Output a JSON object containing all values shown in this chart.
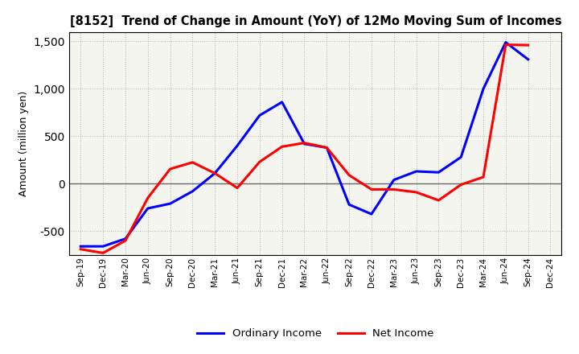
{
  "title": "[8152]  Trend of Change in Amount (YoY) of 12Mo Moving Sum of Incomes",
  "ylabel": "Amount (million yen)",
  "x_labels": [
    "Sep-19",
    "Dec-19",
    "Mar-20",
    "Jun-20",
    "Sep-20",
    "Dec-20",
    "Mar-21",
    "Jun-21",
    "Sep-21",
    "Dec-21",
    "Mar-22",
    "Jun-22",
    "Sep-22",
    "Dec-22",
    "Mar-23",
    "Jun-23",
    "Sep-23",
    "Dec-23",
    "Mar-24",
    "Jun-24",
    "Sep-24",
    "Dec-24"
  ],
  "ordinary_income": [
    -660,
    -660,
    -580,
    -260,
    -210,
    -80,
    110,
    400,
    720,
    860,
    420,
    380,
    -220,
    -320,
    40,
    130,
    120,
    280,
    1000,
    1490,
    1310,
    null
  ],
  "net_income": [
    -690,
    -730,
    -600,
    -150,
    155,
    225,
    110,
    -45,
    230,
    390,
    430,
    380,
    90,
    -60,
    -60,
    -90,
    -175,
    -10,
    70,
    1465,
    1460,
    null
  ],
  "ordinary_income_color": "#0000FF",
  "net_income_color": "#FF0000",
  "background_color": "#FFFFFF",
  "plot_bg_color": "#F5F5F0",
  "grid_color": "#999999",
  "zero_line_color": "#666666",
  "ylim": [
    -750,
    1600
  ],
  "yticks": [
    -500,
    0,
    500,
    1000,
    1500
  ],
  "legend_labels": [
    "Ordinary Income",
    "Net Income"
  ]
}
